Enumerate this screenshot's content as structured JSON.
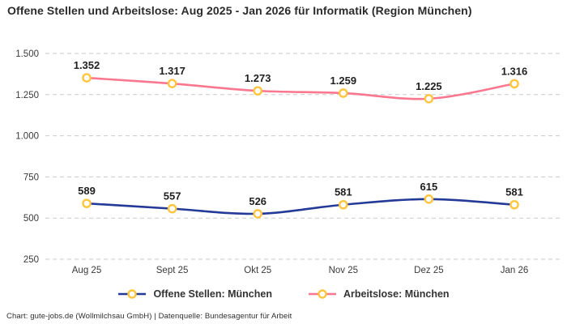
{
  "title": "Offene Stellen und Arbeitslose: Aug 2025 - Jan 2026 für Informatik (Region München)",
  "footer_credit": "Chart: gute-jobs.de (Wollmilchsau GmbH) | Datenquelle: Bundesagentur für Arbeit",
  "colors": {
    "offene_stellen_line": "#243a97",
    "arbeitslose_line": "#f9778f",
    "marker_ring": "#ffc53d",
    "marker_fill": "#ffffff",
    "gridline": "#c9c9c9",
    "title_text": "#2b2b2b",
    "value_label_text": "#1f1f1f"
  },
  "chart_data": {
    "type": "line",
    "title": "Offene Stellen und Arbeitslose: Aug 2025 - Jan 2026 für Informatik (Region München)",
    "categories": [
      "Aug 25",
      "Sept 25",
      "Okt 25",
      "Nov 25",
      "Dez 25",
      "Jan 26"
    ],
    "series": [
      {
        "name": "Offene Stellen: München",
        "values": [
          589,
          557,
          526,
          581,
          615,
          581
        ],
        "labels": [
          "589",
          "557",
          "526",
          "581",
          "615",
          "581"
        ],
        "color": "#243a97"
      },
      {
        "name": "Arbeitslose: München",
        "values": [
          1352,
          1317,
          1273,
          1259,
          1225,
          1316
        ],
        "labels": [
          "1.352",
          "1.317",
          "1.273",
          "1.259",
          "1.225",
          "1.316"
        ],
        "color": "#f9778f"
      }
    ],
    "y_ticks": [
      {
        "value": 250,
        "label": "250"
      },
      {
        "value": 500,
        "label": "500"
      },
      {
        "value": 750,
        "label": "750"
      },
      {
        "value": 1000,
        "label": "1.000"
      },
      {
        "value": 1250,
        "label": "1.250"
      },
      {
        "value": 1500,
        "label": "1.500"
      }
    ],
    "ylim": [
      250,
      1500
    ],
    "xlabel": "",
    "ylabel": "",
    "grid": "horizontal-dashed",
    "legend_position": "bottom",
    "marker": {
      "shape": "circle",
      "fill": "#ffffff",
      "ring": "#ffc53d"
    }
  },
  "legend": {
    "items": [
      {
        "label": "Offene Stellen: München",
        "color": "#243a97"
      },
      {
        "label": "Arbeitslose: München",
        "color": "#f9778f"
      }
    ]
  }
}
